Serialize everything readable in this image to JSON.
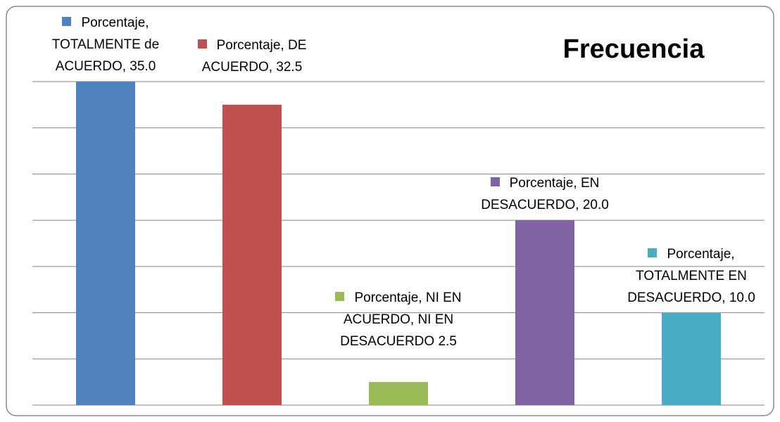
{
  "chart_data": {
    "type": "bar",
    "title": "Frecuencia",
    "categories": [
      "TOTALMENTE de ACUERDO",
      "DE ACUERDO",
      "NI EN ACUERDO, NI EN DESACUERDO",
      "EN DESACUERDO",
      "TOTALMENTE EN DESACUERDO"
    ],
    "values": [
      35.0,
      32.5,
      2.5,
      20.0,
      10.0
    ],
    "value_labels": [
      "Porcentaje, TOTALMENTE de ACUERDO, 35.0",
      "Porcentaje, DE ACUERDO, 32.5",
      "Porcentaje, NI EN ACUERDO, NI EN DESACUERDO 2.5",
      "Porcentaje, EN DESACUERDO, 20.0",
      "Porcentaje, TOTALMENTE EN DESACUERDO, 10.0"
    ],
    "colors": [
      "#4f81bd",
      "#c0504d",
      "#9bbb59",
      "#8064a2",
      "#4bacc6"
    ],
    "ylim": [
      0,
      35
    ],
    "yticks": [
      0,
      5,
      10,
      15,
      20,
      25,
      30,
      35
    ],
    "grid": true,
    "tick_labels": false
  }
}
